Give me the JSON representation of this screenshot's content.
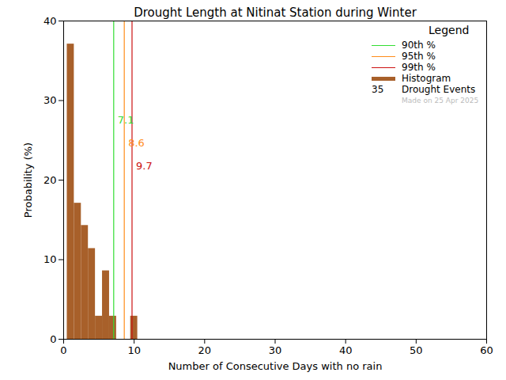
{
  "chart_data": {
    "type": "histogram",
    "title": "Drought Length at Nitinat Station during Winter",
    "x_label": "Number of Consecutive Days with no rain",
    "y_label": "Probability (%)",
    "bins": [
      0.5,
      1.5,
      2.5,
      3.5,
      4.5,
      5.5,
      6.5,
      7.5,
      8.5,
      9.5,
      10.5
    ],
    "values": [
      37.1,
      17.1,
      14.3,
      11.4,
      2.9,
      8.6,
      2.9,
      0,
      0,
      2.9
    ],
    "color": "#a8602a",
    "percentiles": [
      {
        "name": "90th %",
        "value": 7.1,
        "color": "#33dd33"
      },
      {
        "name": "95th %",
        "value": 8.6,
        "color": "#ff8c1a"
      },
      {
        "name": "99th %",
        "value": 9.7,
        "color": "#cc1111"
      }
    ],
    "legend_title": "Legend",
    "histogram_label": "Histogram",
    "event_count": 35,
    "event_label": "Drought Events",
    "footnote": "Made on 25 Apr 2025",
    "xlim": [
      0,
      60
    ],
    "xticks": [
      0,
      10,
      20,
      30,
      40,
      50,
      60
    ],
    "ylim": [
      0,
      40
    ],
    "yticks": [
      0,
      10,
      20,
      30,
      40
    ],
    "legend": "top-right"
  }
}
